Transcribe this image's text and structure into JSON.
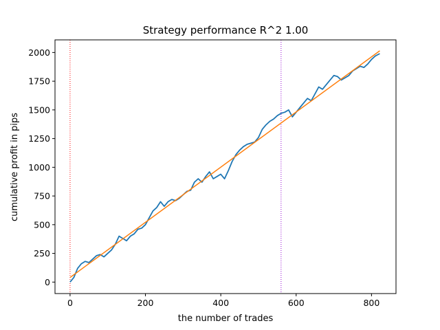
{
  "chart_data": {
    "type": "line",
    "title": "Strategy performance R^2 1.00",
    "xlabel": "the number of trades",
    "ylabel": "cumulative profit in pips",
    "xlim": [
      -40,
      865
    ],
    "ylim": [
      -100,
      2110
    ],
    "xticks": [
      0,
      200,
      400,
      600,
      800
    ],
    "yticks": [
      0,
      250,
      500,
      750,
      1000,
      1250,
      1500,
      1750,
      2000
    ],
    "grid": false,
    "series": [
      {
        "color": "#1f77b4",
        "x": [
          0,
          10,
          20,
          30,
          40,
          50,
          60,
          70,
          80,
          90,
          100,
          110,
          120,
          130,
          135,
          140,
          150,
          160,
          170,
          180,
          190,
          200,
          210,
          220,
          230,
          240,
          250,
          260,
          270,
          280,
          290,
          300,
          310,
          320,
          330,
          340,
          350,
          360,
          370,
          380,
          390,
          400,
          410,
          420,
          430,
          440,
          450,
          460,
          470,
          480,
          490,
          500,
          510,
          520,
          530,
          540,
          550,
          560,
          570,
          580,
          590,
          600,
          610,
          620,
          630,
          640,
          650,
          660,
          670,
          680,
          690,
          700,
          710,
          720,
          730,
          740,
          750,
          760,
          770,
          780,
          790,
          800,
          810,
          822
        ],
        "y": [
          0,
          40,
          120,
          160,
          180,
          170,
          200,
          230,
          240,
          220,
          250,
          280,
          330,
          400,
          390,
          380,
          360,
          400,
          420,
          460,
          470,
          500,
          560,
          620,
          650,
          700,
          660,
          700,
          720,
          710,
          730,
          760,
          790,
          800,
          870,
          900,
          870,
          920,
          960,
          900,
          920,
          940,
          900,
          970,
          1050,
          1110,
          1150,
          1180,
          1200,
          1210,
          1220,
          1260,
          1330,
          1370,
          1400,
          1420,
          1450,
          1470,
          1480,
          1500,
          1440,
          1480,
          1520,
          1560,
          1600,
          1580,
          1640,
          1700,
          1680,
          1720,
          1760,
          1800,
          1790,
          1760,
          1780,
          1800,
          1840,
          1860,
          1880,
          1870,
          1900,
          1940,
          1970,
          1990
        ]
      },
      {
        "color": "#ff7f0e",
        "x": [
          0,
          822
        ],
        "y": [
          40,
          2015
        ]
      }
    ],
    "vlines": [
      {
        "x": 0,
        "color": "#ff0000",
        "style": "dotted"
      },
      {
        "x": 560,
        "color": "#9400d3",
        "style": "dotted"
      }
    ]
  }
}
